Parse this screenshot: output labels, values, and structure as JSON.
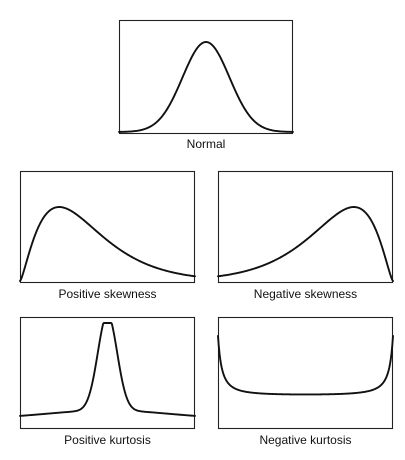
{
  "panels": [
    {
      "id": "normal",
      "label": "Normal",
      "curve": "normal"
    },
    {
      "id": "posskew",
      "label": "Positive skewness",
      "curve": "positive-skew"
    },
    {
      "id": "negskew",
      "label": "Negative skewness",
      "curve": "negative-skew"
    },
    {
      "id": "poskurt",
      "label": "Positive kurtosis",
      "curve": "positive-kurtosis"
    },
    {
      "id": "negkurt",
      "label": "Negative kurtosis",
      "curve": "negative-kurtosis"
    }
  ],
  "colors": {
    "line": "#111111",
    "frame": "#222222",
    "background": "#ffffff"
  }
}
